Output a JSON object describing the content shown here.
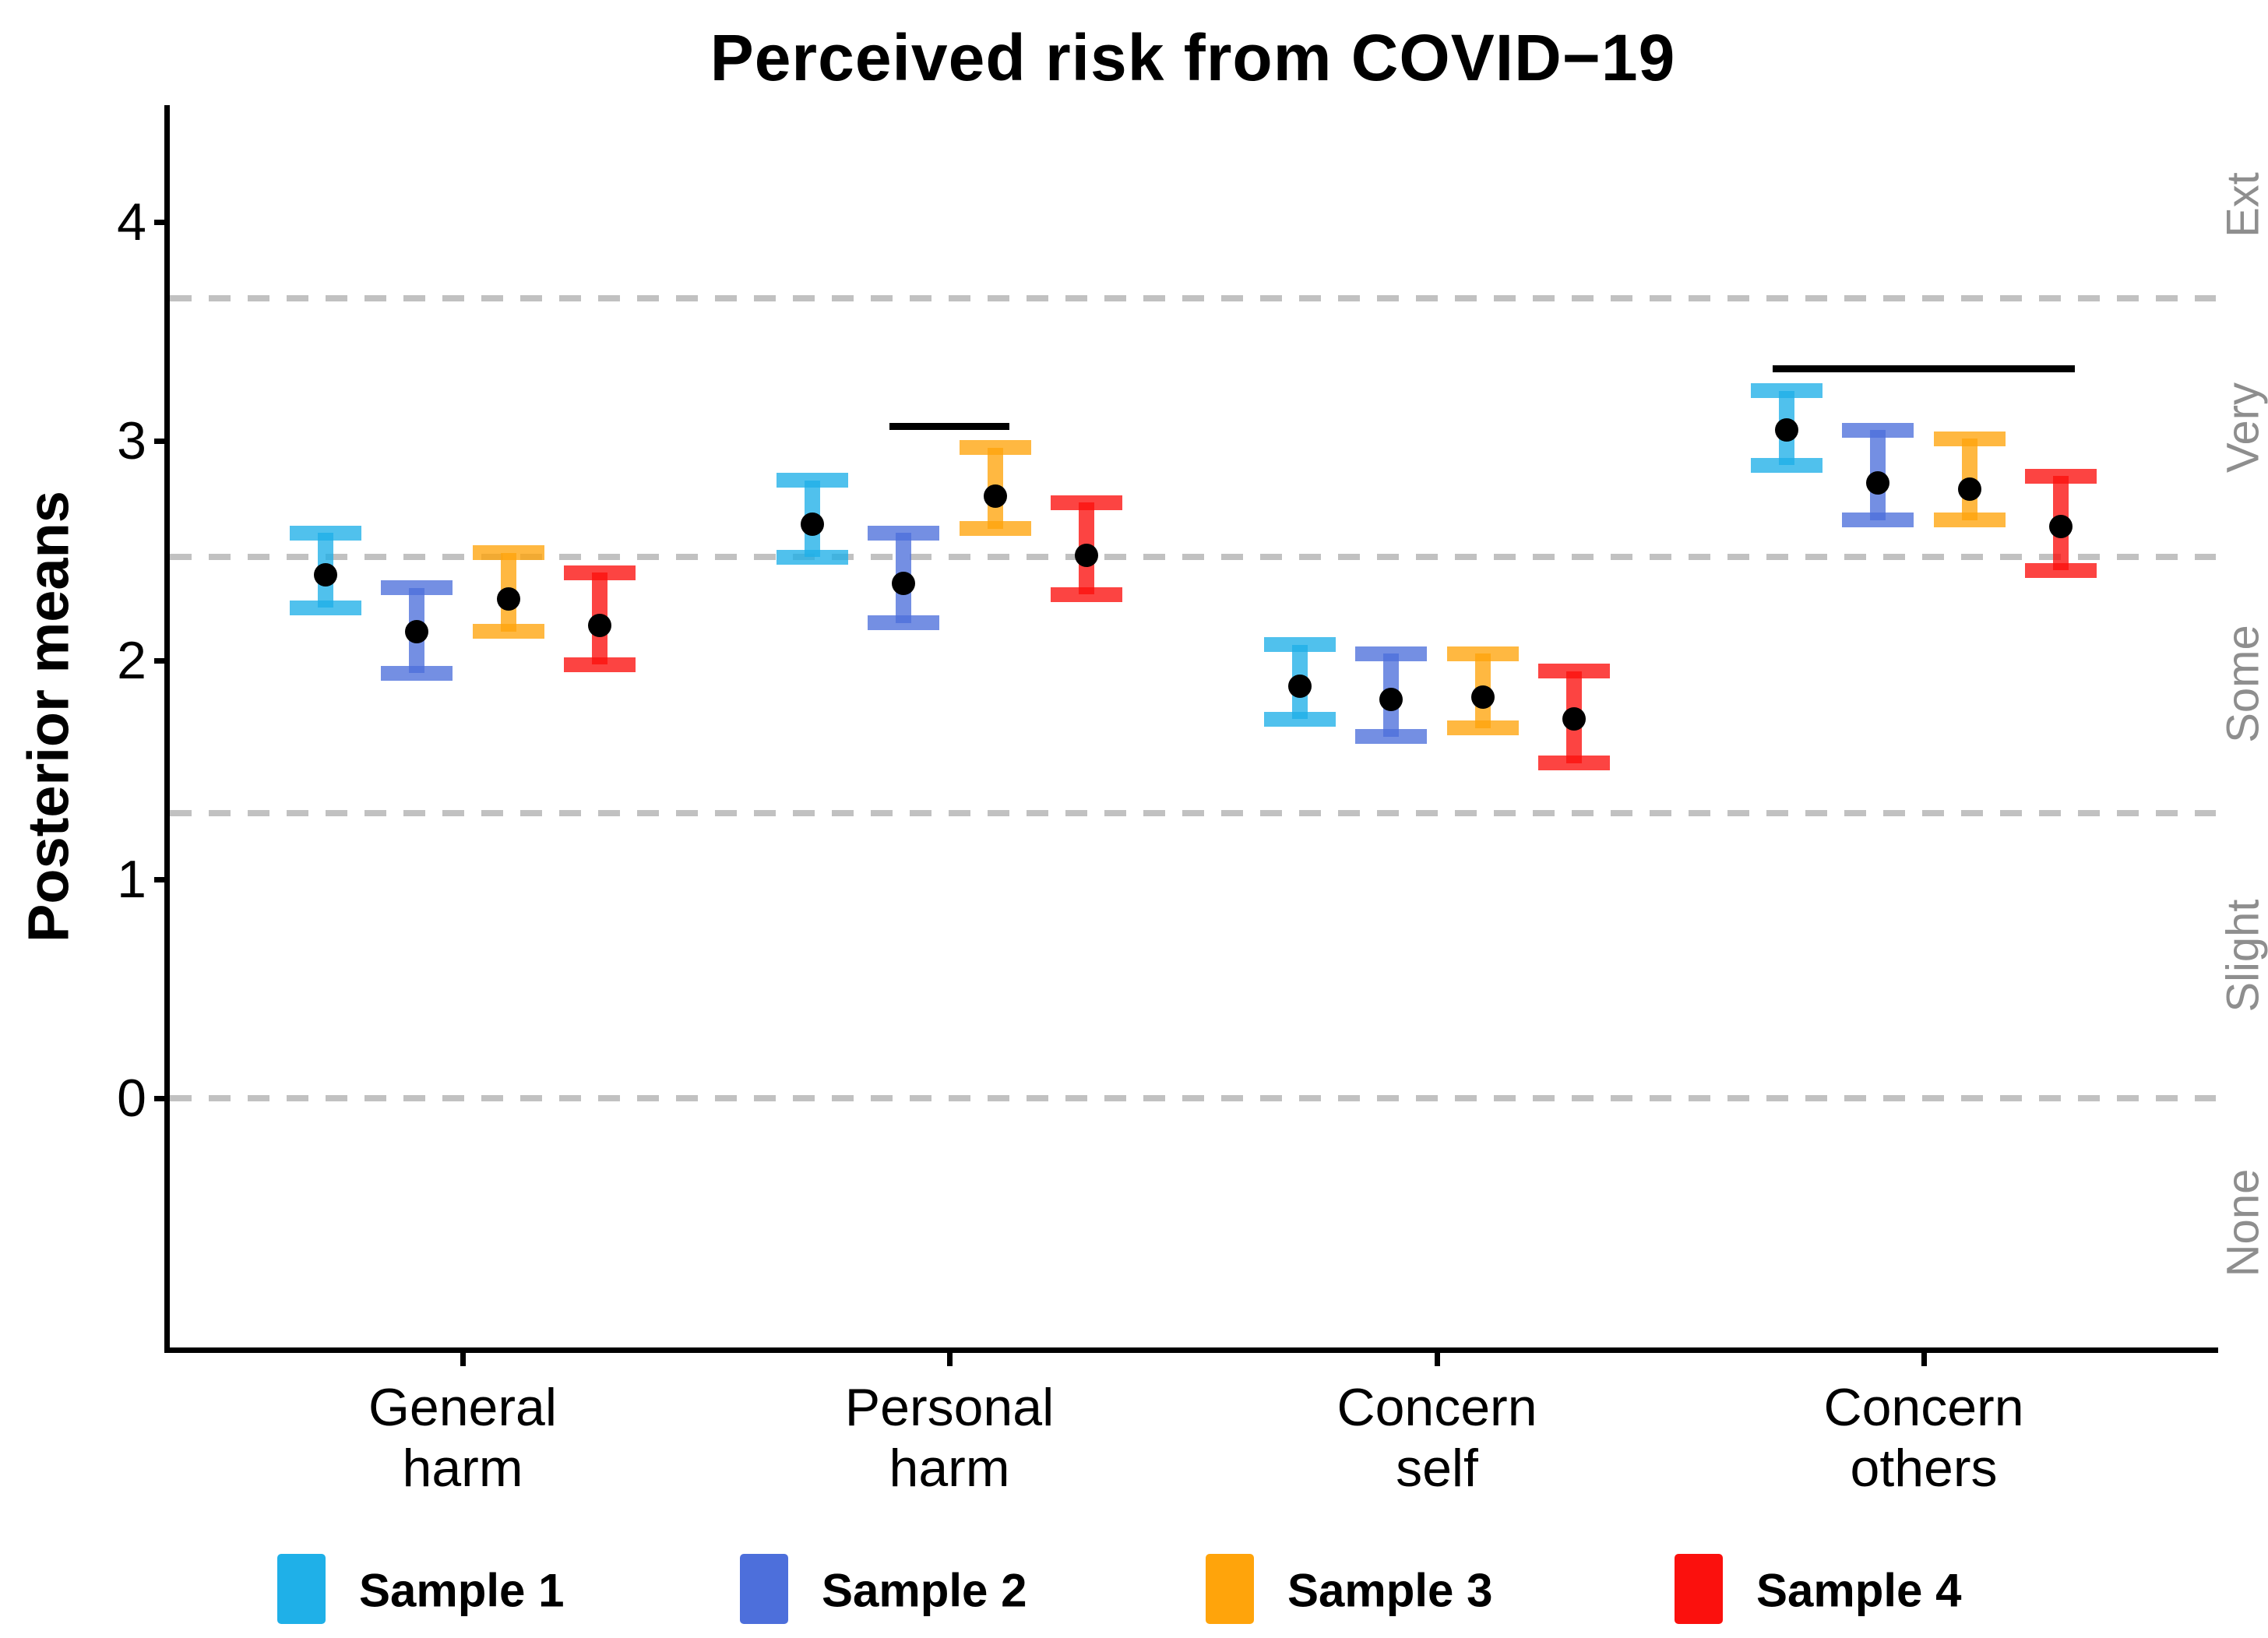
{
  "title": "Perceived risk from COVID−19",
  "y_axis": {
    "label": "Posterior means",
    "tick_labels": [
      "4",
      "3",
      "2",
      "1",
      "0"
    ],
    "tick_values": [
      4,
      3,
      2,
      1,
      0
    ]
  },
  "x_axis": {
    "categories": [
      {
        "lines": [
          "General",
          "harm"
        ]
      },
      {
        "lines": [
          "Personal",
          "harm"
        ]
      },
      {
        "lines": [
          "Concern",
          "self"
        ]
      },
      {
        "lines": [
          "Concern",
          "others"
        ]
      }
    ]
  },
  "right_axis": {
    "labels": [
      {
        "text": "Ext",
        "value": 4.08
      },
      {
        "text": "Very",
        "value": 3.06
      },
      {
        "text": "Some",
        "value": 1.89
      },
      {
        "text": "Slight",
        "value": 0.65
      },
      {
        "text": "None",
        "value": -0.57
      }
    ]
  },
  "legend": {
    "items": [
      {
        "label": "Sample 1",
        "color": "#1FB0E8"
      },
      {
        "label": "Sample 2",
        "color": "#4D6FDB"
      },
      {
        "label": "Sample 3",
        "color": "#FFA40B"
      },
      {
        "label": "Sample 4",
        "color": "#FB100D"
      }
    ]
  },
  "chart_data": {
    "type": "pointrange",
    "title": "Perceived risk from COVID−19",
    "ylabel": "Posterior means",
    "categories": [
      "General harm",
      "Personal harm",
      "Concern self",
      "Concern others"
    ],
    "yticks": [
      4,
      3,
      2,
      1,
      0
    ],
    "ylim": [
      -1.14,
      4.53
    ],
    "grid": "dashed-category-cutoffs",
    "legend_position": "bottom",
    "response_scale_labels": [
      "None",
      "Slight",
      "Some",
      "Very",
      "Ext"
    ],
    "cutoff_values": [
      3.65,
      2.47,
      1.3,
      0.0
    ],
    "series": [
      {
        "name": "Sample 1",
        "color": "#1FB0E8",
        "means": [
          2.39,
          2.62,
          1.88,
          3.05
        ],
        "lower": [
          2.24,
          2.47,
          1.73,
          2.89
        ],
        "upper": [
          2.58,
          2.82,
          2.07,
          3.23
        ]
      },
      {
        "name": "Sample 2",
        "color": "#4D6FDB",
        "means": [
          2.13,
          2.35,
          1.82,
          2.81
        ],
        "lower": [
          1.94,
          2.17,
          1.65,
          2.64
        ],
        "upper": [
          2.33,
          2.58,
          2.03,
          3.05
        ]
      },
      {
        "name": "Sample 3",
        "color": "#FFA40B",
        "means": [
          2.28,
          2.75,
          1.83,
          2.78
        ],
        "lower": [
          2.13,
          2.6,
          1.69,
          2.64
        ],
        "upper": [
          2.49,
          2.97,
          2.03,
          3.01
        ]
      },
      {
        "name": "Sample 4",
        "color": "#FB100D",
        "means": [
          2.16,
          2.48,
          1.73,
          2.61
        ],
        "lower": [
          1.98,
          2.3,
          1.53,
          2.41
        ],
        "upper": [
          2.4,
          2.72,
          1.95,
          2.84
        ]
      }
    ],
    "significance_bars": [
      {
        "category_index": 1,
        "from_series": 1,
        "to_series": 2,
        "y": 3.07
      },
      {
        "category_index": 3,
        "from_series": 0,
        "to_series": 3,
        "y": 3.33
      }
    ]
  }
}
